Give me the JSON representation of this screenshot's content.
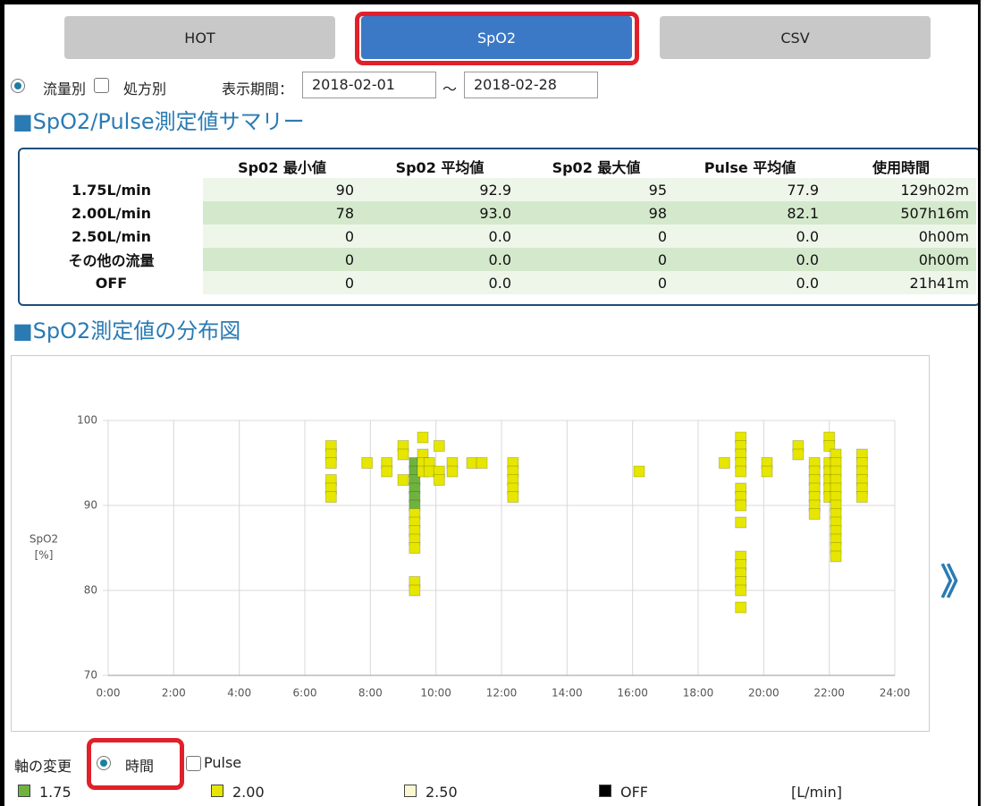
{
  "tabs": [
    "HOT",
    "SpO2",
    "CSV"
  ],
  "filters": {
    "option1": "流量別",
    "option2": "処方別",
    "period_label": "表示期間：",
    "start": "2018-02-01",
    "separator": "～",
    "end": "2018-02-28"
  },
  "summary": {
    "heading": "■SpO2/Pulse測定値サマリー",
    "columns": [
      "Sp02 最小値",
      "Sp02 平均値",
      "Sp02 最大値",
      "Pulse 平均値",
      "使用時間"
    ],
    "rows": [
      [
        "1.75L/min",
        "90",
        "92.9",
        "95",
        "77.9",
        "129h02m"
      ],
      [
        "2.00L/min",
        "78",
        "93.0",
        "98",
        "82.1",
        "507h16m"
      ],
      [
        "2.50L/min",
        "0",
        "0.0",
        "0",
        "0.0",
        "0h00m"
      ],
      [
        "その他の流量",
        "0",
        "0.0",
        "0",
        "0.0",
        "0h00m"
      ],
      [
        "OFF",
        "0",
        "0.0",
        "0",
        "0.0",
        "21h41m"
      ]
    ]
  },
  "chart_data": {
    "type": "scatter",
    "title": "■SpO2測定値の分布図",
    "y_label": [
      "SpO2",
      "[%]"
    ],
    "xlim": [
      0,
      24
    ],
    "xticks": [
      {
        "value": 0,
        "label": "0:00"
      },
      {
        "value": 2,
        "label": "2:00"
      },
      {
        "value": 4,
        "label": "4:00"
      },
      {
        "value": 6,
        "label": "6:00"
      },
      {
        "value": 8,
        "label": "8:00"
      },
      {
        "value": 10,
        "label": "10:00"
      },
      {
        "value": 12,
        "label": "12:00"
      },
      {
        "value": 14,
        "label": "14:00"
      },
      {
        "value": 16,
        "label": "16:00"
      },
      {
        "value": 18,
        "label": "18:00"
      },
      {
        "value": 20,
        "label": "20:00"
      },
      {
        "value": 22,
        "label": "22:00"
      },
      {
        "value": 24,
        "label": "24:00"
      }
    ],
    "ylim": [
      70,
      100
    ],
    "yticks": [
      70,
      80,
      90,
      100
    ],
    "grid": true,
    "legend_unit": "[L/min]",
    "series": [
      {
        "name": "1.75",
        "color": "#6fb33f",
        "x": [
          9.35,
          9.35,
          9.35,
          9.35,
          9.35,
          9.35
        ],
        "values": [
          95,
          94,
          93,
          92,
          91,
          90
        ]
      },
      {
        "name": "2.00",
        "color": "#e6e600",
        "x": [
          6.8,
          6.8,
          6.8,
          6.8,
          6.8,
          6.8,
          7.9,
          8.5,
          8.5,
          9.0,
          9.0,
          9.0,
          9.35,
          9.35,
          9.35,
          9.35,
          9.35,
          9.35,
          9.35,
          9.6,
          9.6,
          9.6,
          9.6,
          9.8,
          9.8,
          10.1,
          10.1,
          10.1,
          10.5,
          10.5,
          11.1,
          11.4,
          12.35,
          12.35,
          12.35,
          12.35,
          12.35,
          16.2,
          18.8,
          19.3,
          19.3,
          19.3,
          19.3,
          19.3,
          19.3,
          19.3,
          19.3,
          19.3,
          19.3,
          19.3,
          19.3,
          19.3,
          19.3,
          19.3,
          20.1,
          20.1,
          21.05,
          21.05,
          21.55,
          21.55,
          21.55,
          21.55,
          21.55,
          21.55,
          21.55,
          22.0,
          22.0,
          22.0,
          22.0,
          22.0,
          22.0,
          22.0,
          22.2,
          22.2,
          22.2,
          22.2,
          22.2,
          22.2,
          22.2,
          22.2,
          22.2,
          22.2,
          22.2,
          22.2,
          22.2,
          23.0,
          23.0,
          23.0,
          23.0,
          23.0,
          23.0
        ],
        "values": [
          97,
          96,
          95,
          93,
          92,
          91,
          95,
          95,
          94,
          97,
          96,
          93,
          89,
          88,
          87,
          86,
          85,
          81,
          80,
          98,
          96,
          95,
          94,
          95,
          94,
          97,
          94,
          93,
          95,
          94,
          95,
          95,
          95,
          94,
          93,
          92,
          91,
          94,
          95,
          98,
          97,
          96,
          95,
          94,
          92,
          91,
          90,
          88,
          84,
          83,
          82,
          81,
          80,
          78,
          95,
          94,
          97,
          96,
          95,
          94,
          93,
          92,
          91,
          90,
          89,
          98,
          97,
          95,
          94,
          93,
          92,
          91,
          96,
          95,
          94,
          93,
          92,
          91,
          90,
          89,
          88,
          87,
          86,
          85,
          84,
          96,
          95,
          94,
          93,
          92,
          91
        ]
      },
      {
        "name": "2.50",
        "color": "#fbf7d0",
        "x": [],
        "values": []
      },
      {
        "name": "OFF",
        "color": "#000000",
        "x": [],
        "values": []
      }
    ]
  },
  "nav_next": "》",
  "axis_switch": {
    "label": "軸の変更",
    "option1": "時間",
    "option2": "Pulse"
  }
}
